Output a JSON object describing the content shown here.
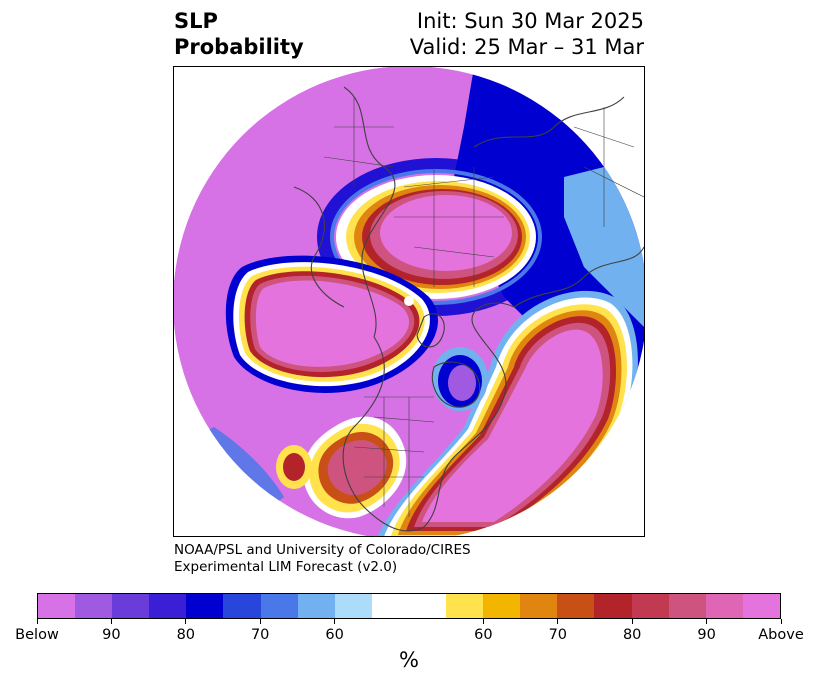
{
  "header": {
    "title_line1": "SLP",
    "title_line2": "Probability",
    "init": "Init: Sun 30 Mar 2025",
    "valid": "Valid: 25 Mar – 31 Mar"
  },
  "credit": {
    "line1": "NOAA/PSL and University of Colorado/CIRES",
    "line2": "Experimental LIM Forecast (v2.0)"
  },
  "colorbar": {
    "unit": "%",
    "tick_labels": [
      "Below",
      "90",
      "80",
      "70",
      "60",
      "60",
      "70",
      "80",
      "90",
      "Above"
    ],
    "colors": [
      "#d672e6",
      "#a05ae1",
      "#6a3ddb",
      "#3b1fd6",
      "#0000d0",
      "#2845dc",
      "#4b78e8",
      "#72b1f0",
      "#acdcfa",
      "#ffffff",
      "#ffe24c",
      "#f3b600",
      "#e08510",
      "#c84f16",
      "#b2242a",
      "#c23a52",
      "#cf537f",
      "#df66b4",
      "#e473dd"
    ]
  },
  "map": {
    "colors": {
      "below_outer": "#d672e6",
      "below_mid": "#a05ae1",
      "below_core": "#0000d0",
      "blue_light": "#72b1f0",
      "white": "#ffffff",
      "yellow": "#ffe24c",
      "orange": "#e08510",
      "red": "#b2242a",
      "rose": "#cf537f",
      "above": "#e473dd",
      "coast": "#404040"
    }
  }
}
